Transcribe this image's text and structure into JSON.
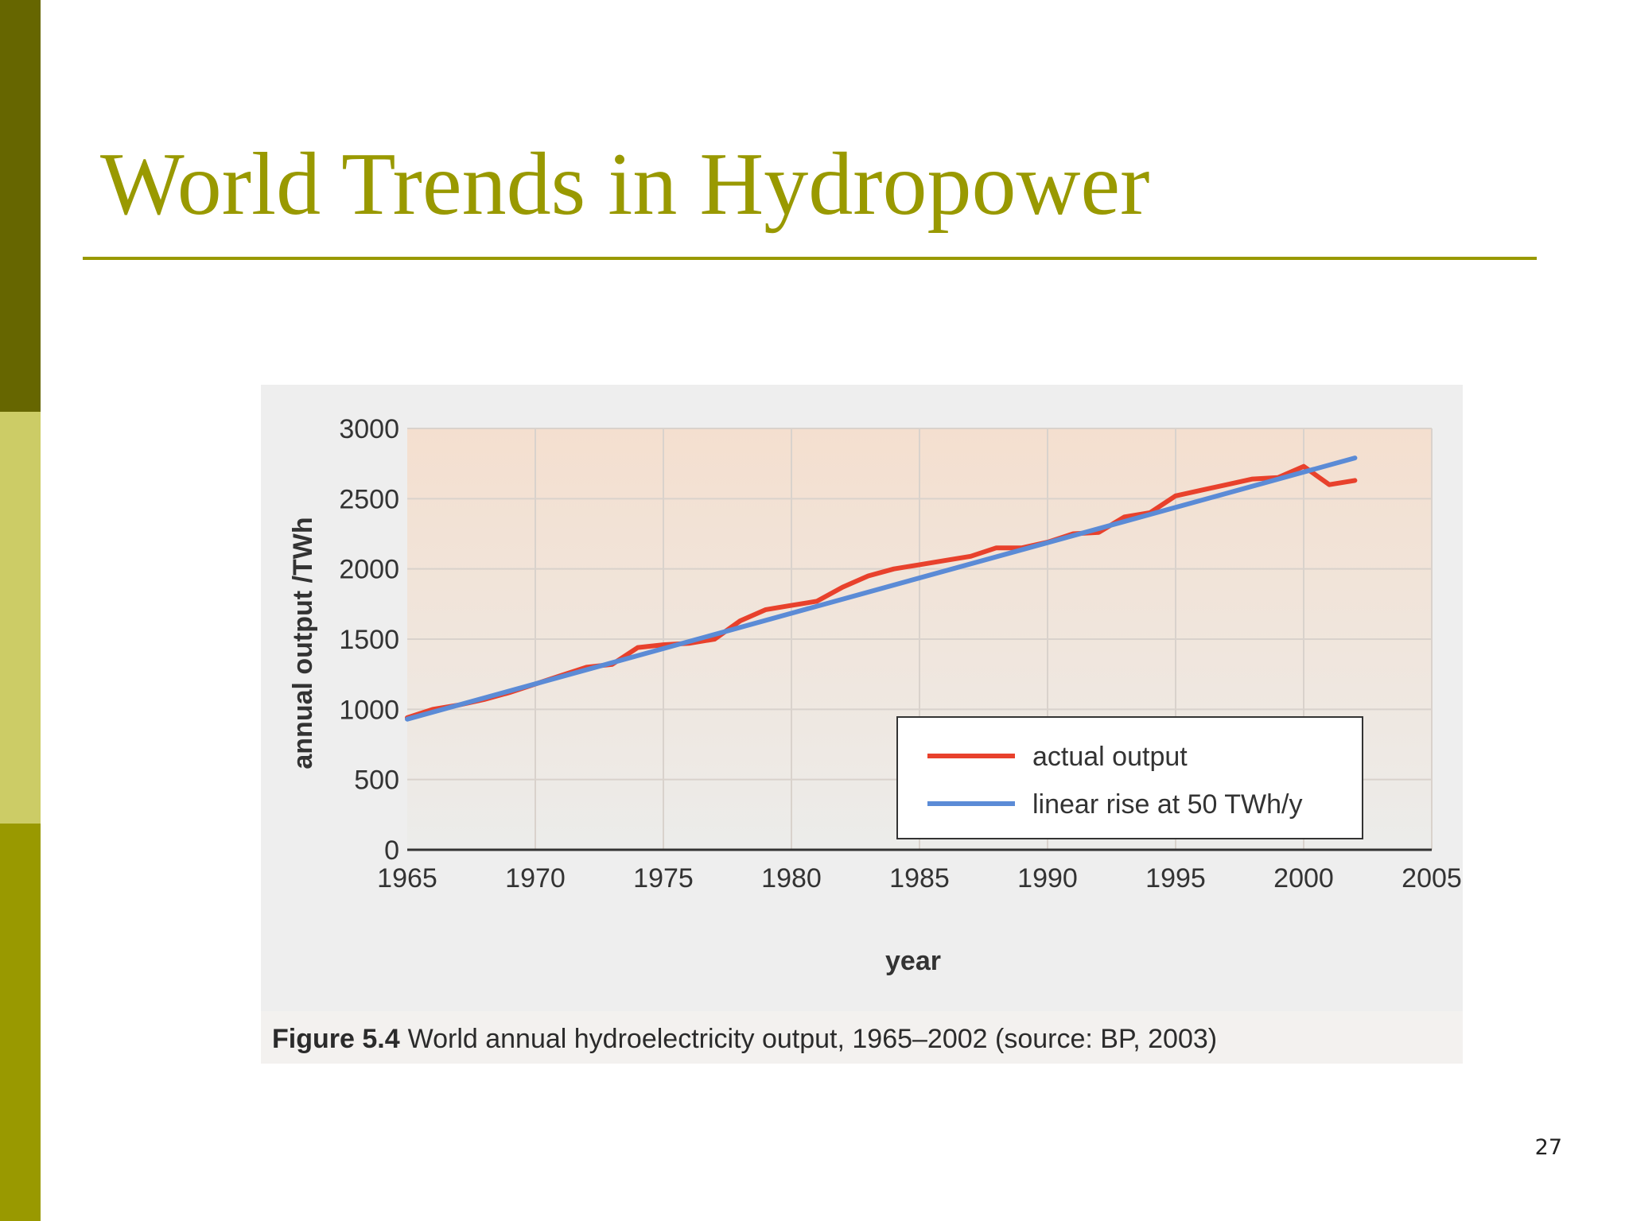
{
  "slide": {
    "title": "World Trends in Hydropower",
    "page_number": "27",
    "colors": {
      "title": "#999900",
      "bar_dark": "#666600",
      "bar_light": "#cccc66",
      "bar_olive": "#999900"
    }
  },
  "figure": {
    "caption_label": "Figure 5.4",
    "caption_text": "World annual hydroelectricity output, 1965–2002 (source: BP, 2003)"
  },
  "chart_data": {
    "type": "line",
    "title": "",
    "xlabel": "year",
    "ylabel": "annual output /TWh",
    "xlim": [
      1965,
      2005
    ],
    "ylim": [
      0,
      3000
    ],
    "x_ticks": [
      "1965",
      "1970",
      "1975",
      "1980",
      "1985",
      "1990",
      "1995",
      "2000",
      "2005"
    ],
    "y_ticks": [
      "0",
      "500",
      "1000",
      "1500",
      "2000",
      "2500",
      "3000"
    ],
    "grid": true,
    "legend_position": "lower-right",
    "series": [
      {
        "name": "actual output",
        "color": "#e8412c",
        "x": [
          1965,
          1966,
          1967,
          1968,
          1969,
          1970,
          1971,
          1972,
          1973,
          1974,
          1975,
          1976,
          1977,
          1978,
          1979,
          1980,
          1981,
          1982,
          1983,
          1984,
          1985,
          1986,
          1987,
          1988,
          1989,
          1990,
          1991,
          1992,
          1993,
          1994,
          1995,
          1996,
          1997,
          1998,
          1999,
          2000,
          2001,
          2002
        ],
        "y": [
          940,
          1000,
          1030,
          1070,
          1120,
          1180,
          1240,
          1300,
          1320,
          1440,
          1460,
          1470,
          1500,
          1630,
          1710,
          1740,
          1770,
          1870,
          1950,
          2000,
          2030,
          2060,
          2090,
          2150,
          2150,
          2190,
          2250,
          2260,
          2370,
          2400,
          2520,
          2560,
          2600,
          2640,
          2650,
          2730,
          2600,
          2630
        ]
      },
      {
        "name": "linear rise at 50 TWh/y",
        "color": "#5b8bd6",
        "x": [
          1965,
          2002
        ],
        "y": [
          930,
          2790
        ]
      }
    ]
  }
}
